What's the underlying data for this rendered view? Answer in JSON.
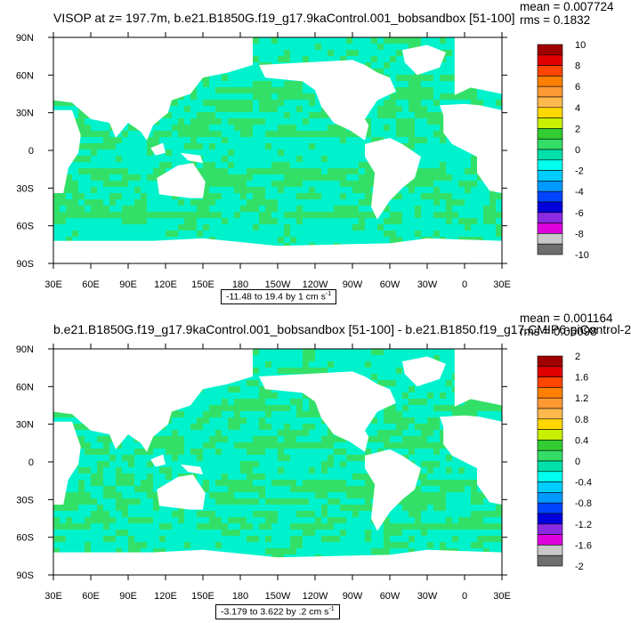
{
  "chart_data": [
    {
      "type": "heatmap",
      "title": "VISOP at z= 197.7m, b.e21.B1850G.f19_g17.9kaControl.001_bobsandbox [51-100]",
      "stats": {
        "mean": "mean = 0.007724",
        "rms": "rms = 0.1832"
      },
      "range_label": "-11.48 to 19.4 by 1 cm s",
      "range_unit_exp": "-1",
      "xticks": [
        "30E",
        "60E",
        "90E",
        "120E",
        "150E",
        "180",
        "150W",
        "120W",
        "90W",
        "60W",
        "30W",
        "0",
        "30E"
      ],
      "yticks": [
        "90N",
        "60N",
        "30N",
        "0",
        "30S",
        "60S",
        "90S"
      ],
      "colorbar": {
        "labels": [
          "10",
          "8",
          "6",
          "4",
          "2",
          "0",
          "-2",
          "-4",
          "-6",
          "-8",
          "-10"
        ],
        "colors": [
          "#a00000",
          "#e00000",
          "#ff4500",
          "#ff7f00",
          "#ff9933",
          "#ffb84d",
          "#ffd700",
          "#c8f000",
          "#32cd32",
          "#33dd66",
          "#00e0aa",
          "#00ffee",
          "#00ccff",
          "#0099ff",
          "#0044ff",
          "#0000dd",
          "#8a2be2",
          "#dd00dd",
          "#c8c8c8",
          "#6e6e6e"
        ]
      },
      "colors": {
        "ocean_main": "#33e067",
        "ocean_alt": "#00f2cc",
        "land": "#ffffff"
      }
    },
    {
      "type": "heatmap",
      "title": "b.e21.B1850G.f19_g17.9kaControl.001_bobsandbox [51-100] - b.e21.B1850.f19_g17.CMIP6-piControl-2",
      "stats": {
        "mean": "mean = 0.001164",
        "rms": "rms = 0.05098"
      },
      "range_label": "-3.179 to 3.622 by .2 cm s",
      "range_unit_exp": "-1",
      "xticks": [
        "30E",
        "60E",
        "90E",
        "120E",
        "150E",
        "180",
        "150W",
        "120W",
        "90W",
        "60W",
        "30W",
        "0",
        "30E"
      ],
      "yticks": [
        "90N",
        "60N",
        "30N",
        "0",
        "30S",
        "60S",
        "90S"
      ],
      "colorbar": {
        "labels": [
          "2",
          "1.6",
          "1.2",
          "0.8",
          "0.4",
          "0",
          "-0.4",
          "-0.8",
          "-1.2",
          "-1.6",
          "-2"
        ],
        "colors": [
          "#a00000",
          "#e00000",
          "#ff4500",
          "#ff7f00",
          "#ff9933",
          "#ffb84d",
          "#ffd700",
          "#c8f000",
          "#32cd32",
          "#33dd66",
          "#00e0aa",
          "#00ffee",
          "#00ccff",
          "#0099ff",
          "#0044ff",
          "#0000dd",
          "#8a2be2",
          "#dd00dd",
          "#c8c8c8",
          "#6e6e6e"
        ]
      },
      "colors": {
        "ocean_main": "#33e067",
        "ocean_alt": "#00f2cc",
        "land": "#ffffff"
      }
    }
  ]
}
